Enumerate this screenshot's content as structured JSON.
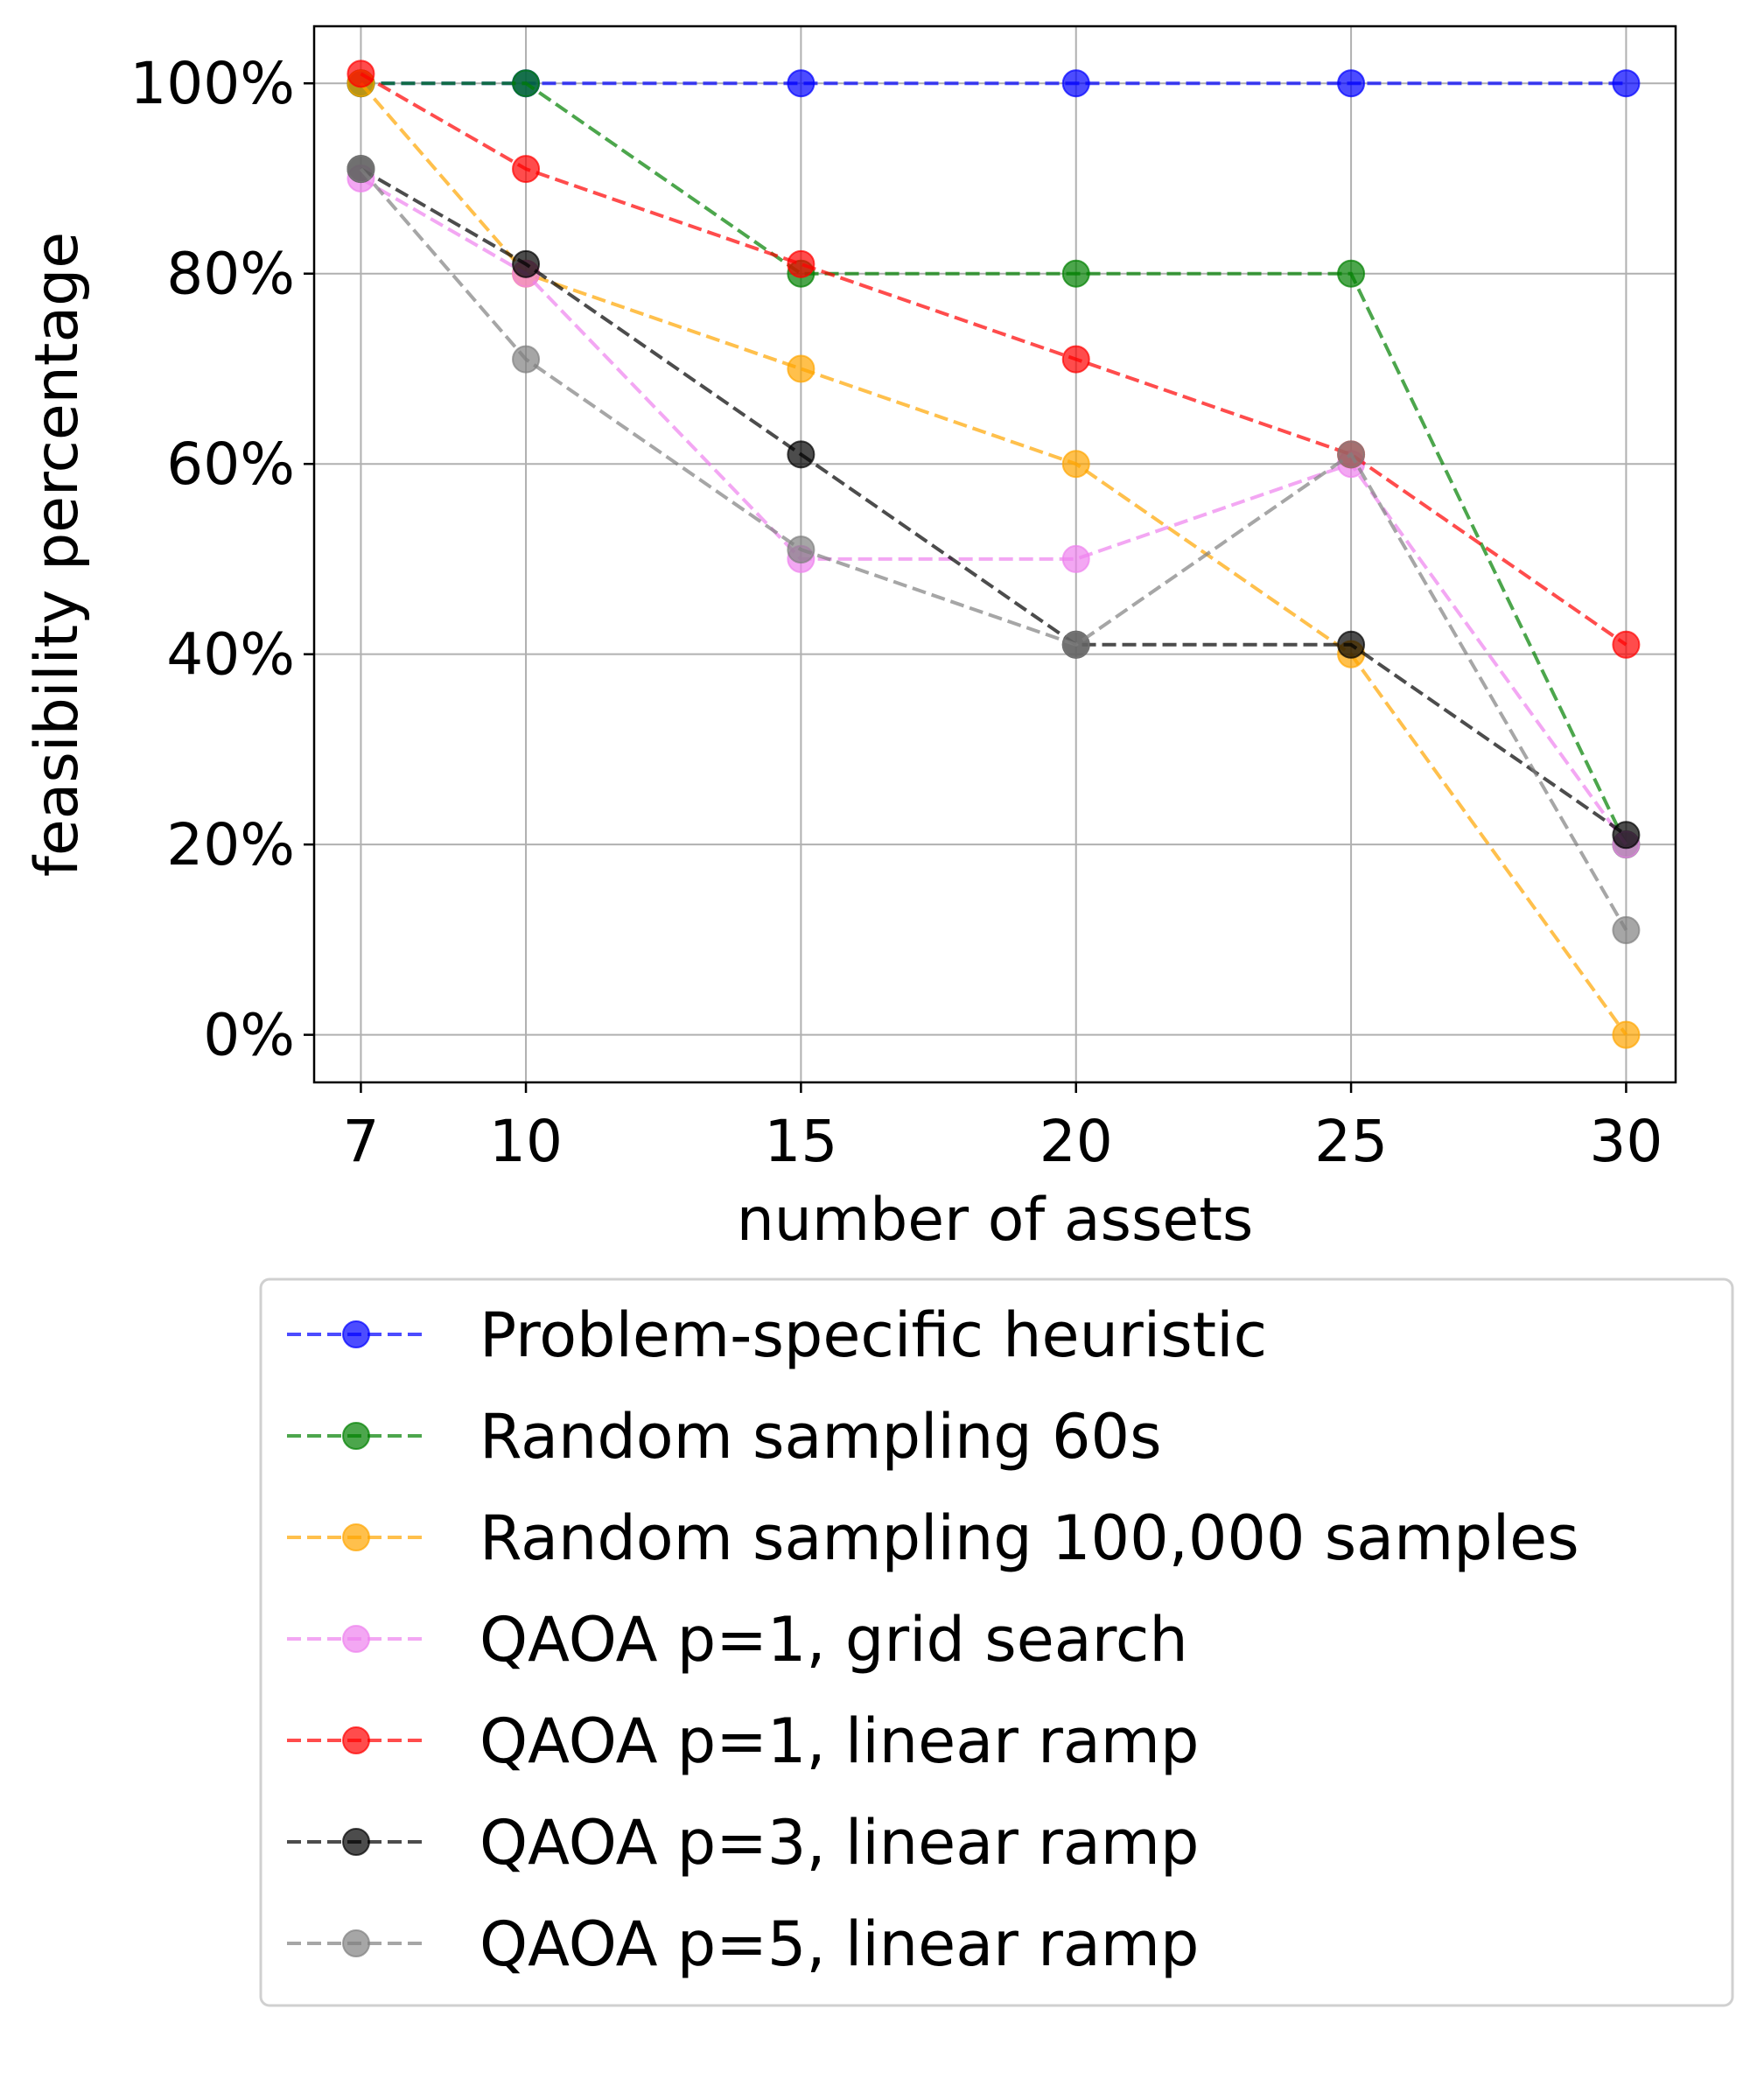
{
  "chart_data": {
    "type": "line",
    "title": "",
    "xlabel": "number of assets",
    "ylabel": "feasibility percentage",
    "x": [
      7,
      10,
      15,
      20,
      25,
      30
    ],
    "x_ticks": [
      "7",
      "10",
      "15",
      "20",
      "25",
      "30"
    ],
    "y_ticks": [
      0,
      20,
      40,
      60,
      80,
      100
    ],
    "y_tick_labels": [
      "0%",
      "20%",
      "40%",
      "60%",
      "80%",
      "100%"
    ],
    "xlim": [
      6.15,
      30.9
    ],
    "ylim": [
      -5,
      106
    ],
    "grid": true,
    "legend_position": "below",
    "series": [
      {
        "name": "Problem-specific heuristic",
        "color": "#0000ff",
        "linestyle": "dashed",
        "marker": "circle",
        "values": [
          100,
          100,
          100,
          100,
          100,
          100
        ]
      },
      {
        "name": "Random sampling 60s",
        "color": "#008000",
        "linestyle": "dashed",
        "marker": "circle",
        "values": [
          100,
          100,
          80,
          80,
          80,
          20
        ]
      },
      {
        "name": "Random sampling 100,000 samples",
        "color": "#ffa500",
        "linestyle": "dashed",
        "marker": "circle",
        "values": [
          100,
          80,
          70,
          60,
          40,
          0
        ]
      },
      {
        "name": "QAOA p=1, grid search",
        "color": "#ee82ee",
        "linestyle": "dashed",
        "marker": "circle",
        "values": [
          90,
          80,
          50,
          50,
          60,
          20
        ]
      },
      {
        "name": "QAOA p=1, linear ramp",
        "color": "#ff0000",
        "linestyle": "dashed",
        "marker": "circle",
        "values": [
          101,
          91,
          81,
          71,
          61,
          41
        ]
      },
      {
        "name": "QAOA p=3, linear ramp",
        "color": "#000000",
        "linestyle": "dashed",
        "marker": "circle",
        "values": [
          91,
          81,
          61,
          41,
          41,
          21
        ]
      },
      {
        "name": "QAOA p=5, linear ramp",
        "color": "#808080",
        "linestyle": "dashed",
        "marker": "circle",
        "values": [
          91,
          71,
          51,
          41,
          61,
          11
        ]
      }
    ]
  }
}
